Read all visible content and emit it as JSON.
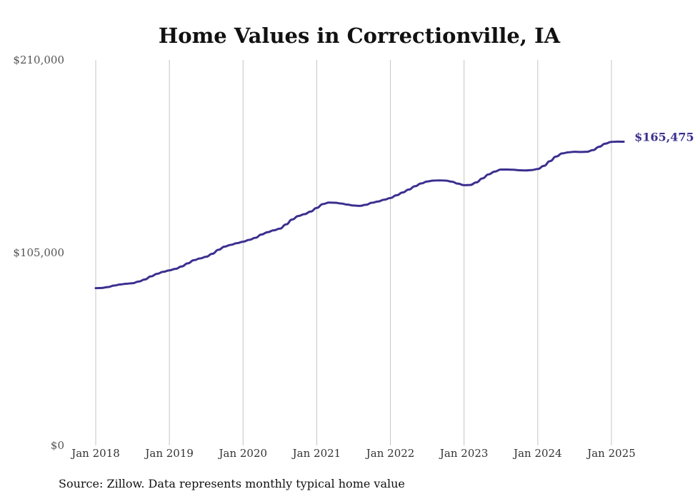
{
  "chart_data": {
    "type": "line",
    "title": "Home Values in Correctionville, IA",
    "xlabel": "",
    "ylabel": "",
    "source": "Source: Zillow. Data represents monthly typical home value",
    "ylim": [
      0,
      210000
    ],
    "y_ticks": [
      {
        "value": 0,
        "label": "$0"
      },
      {
        "value": 105000,
        "label": "$105,000"
      },
      {
        "value": 210000,
        "label": "$210,000"
      }
    ],
    "x_ticks": [
      {
        "value": "2018-01",
        "label": "Jan 2018"
      },
      {
        "value": "2019-01",
        "label": "Jan 2019"
      },
      {
        "value": "2020-01",
        "label": "Jan 2020"
      },
      {
        "value": "2021-01",
        "label": "Jan 2021"
      },
      {
        "value": "2022-01",
        "label": "Jan 2022"
      },
      {
        "value": "2023-01",
        "label": "Jan 2023"
      },
      {
        "value": "2024-01",
        "label": "Jan 2024"
      },
      {
        "value": "2025-01",
        "label": "Jan 2025"
      }
    ],
    "grid": true,
    "legend": "none",
    "end_label": "$165,475",
    "color": "#3b2f8f",
    "series": [
      {
        "points": [
          [
            "2018-01",
            85700
          ],
          [
            "2018-02",
            85800
          ],
          [
            "2018-03",
            86300
          ],
          [
            "2018-04",
            87100
          ],
          [
            "2018-05",
            87700
          ],
          [
            "2018-06",
            88100
          ],
          [
            "2018-07",
            88400
          ],
          [
            "2018-08",
            89300
          ],
          [
            "2018-09",
            90400
          ],
          [
            "2018-10",
            92100
          ],
          [
            "2018-11",
            93500
          ],
          [
            "2018-12",
            94600
          ],
          [
            "2019-01",
            95400
          ],
          [
            "2019-02",
            96200
          ],
          [
            "2019-03",
            97500
          ],
          [
            "2019-04",
            99200
          ],
          [
            "2019-05",
            100900
          ],
          [
            "2019-06",
            101900
          ],
          [
            "2019-07",
            102800
          ],
          [
            "2019-08",
            104400
          ],
          [
            "2019-09",
            106600
          ],
          [
            "2019-10",
            108300
          ],
          [
            "2019-11",
            109300
          ],
          [
            "2019-12",
            110200
          ],
          [
            "2020-01",
            111000
          ],
          [
            "2020-02",
            112000
          ],
          [
            "2020-03",
            113100
          ],
          [
            "2020-04",
            114900
          ],
          [
            "2020-05",
            116200
          ],
          [
            "2020-06",
            117200
          ],
          [
            "2020-07",
            118100
          ],
          [
            "2020-08",
            120400
          ],
          [
            "2020-09",
            123100
          ],
          [
            "2020-10",
            125000
          ],
          [
            "2020-11",
            126000
          ],
          [
            "2020-12",
            127400
          ],
          [
            "2021-01",
            129400
          ],
          [
            "2021-02",
            131500
          ],
          [
            "2021-03",
            132300
          ],
          [
            "2021-04",
            132200
          ],
          [
            "2021-05",
            131800
          ],
          [
            "2021-06",
            131200
          ],
          [
            "2021-07",
            130700
          ],
          [
            "2021-08",
            130500
          ],
          [
            "2021-09",
            131100
          ],
          [
            "2021-10",
            132200
          ],
          [
            "2021-11",
            132900
          ],
          [
            "2021-12",
            133900
          ],
          [
            "2022-01",
            134800
          ],
          [
            "2022-02",
            136300
          ],
          [
            "2022-03",
            137800
          ],
          [
            "2022-04",
            139400
          ],
          [
            "2022-05",
            141200
          ],
          [
            "2022-06",
            142700
          ],
          [
            "2022-07",
            143800
          ],
          [
            "2022-08",
            144300
          ],
          [
            "2022-09",
            144400
          ],
          [
            "2022-10",
            144300
          ],
          [
            "2022-11",
            143700
          ],
          [
            "2022-12",
            142600
          ],
          [
            "2023-01",
            141800
          ],
          [
            "2023-02",
            141900
          ],
          [
            "2023-03",
            143300
          ],
          [
            "2023-04",
            145500
          ],
          [
            "2023-05",
            147700
          ],
          [
            "2023-06",
            149200
          ],
          [
            "2023-07",
            150300
          ],
          [
            "2023-08",
            150300
          ],
          [
            "2023-09",
            150200
          ],
          [
            "2023-10",
            149900
          ],
          [
            "2023-11",
            149800
          ],
          [
            "2023-12",
            150000
          ],
          [
            "2024-01",
            150600
          ],
          [
            "2024-02",
            152300
          ],
          [
            "2024-03",
            154900
          ],
          [
            "2024-04",
            157400
          ],
          [
            "2024-05",
            159100
          ],
          [
            "2024-06",
            159700
          ],
          [
            "2024-07",
            160000
          ],
          [
            "2024-08",
            159900
          ],
          [
            "2024-09",
            160000
          ],
          [
            "2024-10",
            160900
          ],
          [
            "2024-11",
            162700
          ],
          [
            "2024-12",
            164400
          ],
          [
            "2025-01",
            165400
          ],
          [
            "2025-02",
            165500
          ],
          [
            "2025-03",
            165475
          ]
        ]
      }
    ]
  }
}
